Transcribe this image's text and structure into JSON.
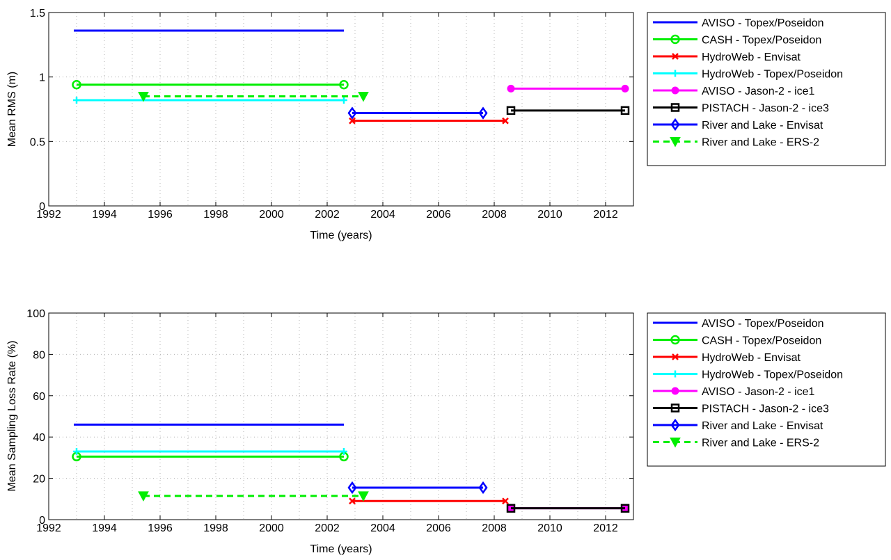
{
  "chart_data": [
    {
      "type": "line",
      "xlabel": "Time (years)",
      "ylabel": "Mean RMS (m)",
      "xlim": [
        1992,
        2013
      ],
      "ylim": [
        0,
        1.5
      ],
      "xticks": [
        1992,
        1994,
        1996,
        1998,
        2000,
        2002,
        2004,
        2006,
        2008,
        2010,
        2012
      ],
      "yticks": [
        0,
        0.5,
        1,
        1.5
      ],
      "ytick_labels": [
        "0",
        "0.5",
        "1",
        "1.5"
      ],
      "grid": true,
      "legend_position": "outside-right",
      "series": [
        {
          "name": "AVISO - Topex/Poseidon",
          "color": "#0000ff",
          "marker": "none",
          "dash": false,
          "x": [
            1992.9,
            2002.6
          ],
          "y": [
            1.36,
            1.36
          ]
        },
        {
          "name": "CASH - Topex/Poseidon",
          "color": "#00ee00",
          "marker": "circle",
          "dash": false,
          "x": [
            1993.0,
            2002.6
          ],
          "y": [
            0.94,
            0.94
          ]
        },
        {
          "name": "HydroWeb - Envisat",
          "color": "#ff0000",
          "marker": "x",
          "dash": false,
          "x": [
            2002.9,
            2008.4
          ],
          "y": [
            0.66,
            0.66
          ]
        },
        {
          "name": "HydroWeb - Topex/Poseidon",
          "color": "#00ffff",
          "marker": "plus",
          "dash": false,
          "x": [
            1993.0,
            2002.6
          ],
          "y": [
            0.82,
            0.82
          ]
        },
        {
          "name": "AVISO - Jason-2 - ice1",
          "color": "#ff00ff",
          "marker": "dot",
          "dash": false,
          "x": [
            2008.6,
            2012.7
          ],
          "y": [
            0.91,
            0.91
          ]
        },
        {
          "name": "PISTACH - Jason-2 - ice3",
          "color": "#000000",
          "marker": "square",
          "dash": false,
          "x": [
            2008.6,
            2012.7
          ],
          "y": [
            0.74,
            0.74
          ]
        },
        {
          "name": "River and Lake - Envisat",
          "color": "#0000ff",
          "marker": "diamond",
          "dash": false,
          "x": [
            2002.9,
            2007.6
          ],
          "y": [
            0.72,
            0.72
          ]
        },
        {
          "name": "River and Lake - ERS-2",
          "color": "#00ee00",
          "marker": "triangle-down",
          "dash": true,
          "x": [
            1995.4,
            2003.3
          ],
          "y": [
            0.85,
            0.85
          ]
        }
      ]
    },
    {
      "type": "line",
      "xlabel": "Time (years)",
      "ylabel": "Mean Sampling Loss Rate (%)",
      "xlim": [
        1992,
        2013
      ],
      "ylim": [
        0,
        100
      ],
      "xticks": [
        1992,
        1994,
        1996,
        1998,
        2000,
        2002,
        2004,
        2006,
        2008,
        2010,
        2012
      ],
      "yticks": [
        0,
        20,
        40,
        60,
        80,
        100
      ],
      "ytick_labels": [
        "0",
        "20",
        "40",
        "60",
        "80",
        "100"
      ],
      "grid": true,
      "legend_position": "outside-right",
      "series": [
        {
          "name": "AVISO - Topex/Poseidon",
          "color": "#0000ff",
          "marker": "none",
          "dash": false,
          "x": [
            1992.9,
            2002.6
          ],
          "y": [
            46,
            46
          ]
        },
        {
          "name": "CASH - Topex/Poseidon",
          "color": "#00ee00",
          "marker": "circle",
          "dash": false,
          "x": [
            1993.0,
            2002.6
          ],
          "y": [
            30.5,
            30.5
          ]
        },
        {
          "name": "HydroWeb - Envisat",
          "color": "#ff0000",
          "marker": "x",
          "dash": false,
          "x": [
            2002.9,
            2008.4
          ],
          "y": [
            9,
            9
          ]
        },
        {
          "name": "HydroWeb - Topex/Poseidon",
          "color": "#00ffff",
          "marker": "plus",
          "dash": false,
          "x": [
            1993.0,
            2002.6
          ],
          "y": [
            33,
            33
          ]
        },
        {
          "name": "AVISO - Jason-2 - ice1",
          "color": "#ff00ff",
          "marker": "dot",
          "dash": false,
          "x": [
            2008.6,
            2012.7
          ],
          "y": [
            5.5,
            5.5
          ]
        },
        {
          "name": "PISTACH - Jason-2 - ice3",
          "color": "#000000",
          "marker": "square",
          "dash": false,
          "x": [
            2008.6,
            2012.7
          ],
          "y": [
            5.5,
            5.5
          ]
        },
        {
          "name": "River and Lake - Envisat",
          "color": "#0000ff",
          "marker": "diamond",
          "dash": false,
          "x": [
            2002.9,
            2007.6
          ],
          "y": [
            15.5,
            15.5
          ]
        },
        {
          "name": "River and Lake - ERS-2",
          "color": "#00ee00",
          "marker": "triangle-down",
          "dash": true,
          "x": [
            1995.4,
            2003.3
          ],
          "y": [
            11.5,
            11.5
          ]
        }
      ]
    }
  ]
}
